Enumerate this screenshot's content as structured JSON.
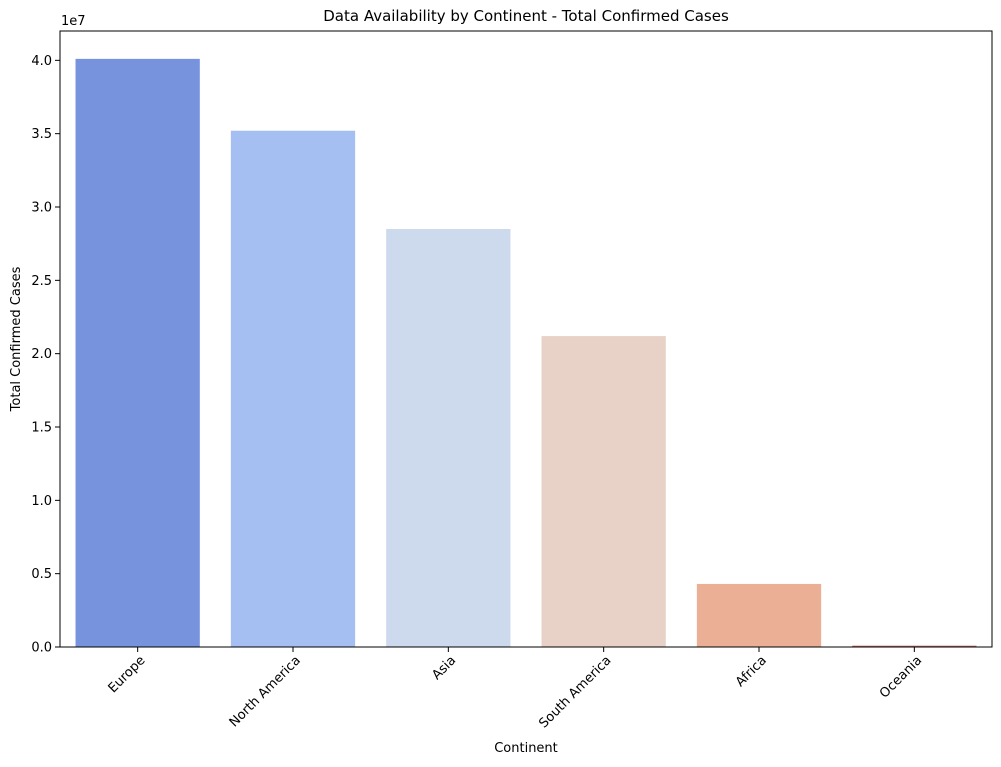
{
  "chart_data": {
    "type": "bar",
    "title": "Data Availability by Continent - Total Confirmed Cases",
    "xlabel": "Continent",
    "ylabel": "Total Confirmed Cases",
    "y_offset_label": "1e7",
    "categories": [
      "Europe",
      "North America",
      "Asia",
      "South America",
      "Africa",
      "Oceania"
    ],
    "values": [
      40100000,
      35200000,
      28500000,
      21200000,
      4300000,
      90000
    ],
    "colors": [
      "#7793dd",
      "#a5bff3",
      "#cdd9ec",
      "#e8d2c8",
      "#ebaf96",
      "#c4695a"
    ],
    "ylim": [
      0,
      42000000
    ],
    "yticks": [
      0,
      5000000,
      10000000,
      15000000,
      20000000,
      25000000,
      30000000,
      35000000,
      40000000
    ],
    "ytick_labels": [
      "0.0",
      "0.5",
      "1.0",
      "1.5",
      "2.0",
      "2.5",
      "3.0",
      "3.5",
      "4.0"
    ],
    "grid": false,
    "legend": "none"
  }
}
